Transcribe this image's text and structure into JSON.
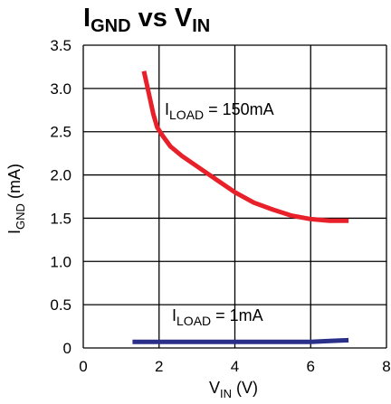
{
  "chart_data": {
    "type": "line",
    "title": {
      "main": "I",
      "main_sub": "GND",
      "mid": " vs V",
      "mid_sub": "IN"
    },
    "xlabel": {
      "main": "V",
      "sub": "IN",
      "rest": " (V)"
    },
    "ylabel": {
      "main": "I",
      "sub": "GND",
      "rest": " (mA)"
    },
    "xlim": [
      0,
      8
    ],
    "ylim": [
      0,
      3.5
    ],
    "x_ticks": [
      "0",
      "2",
      "4",
      "6",
      "8"
    ],
    "y_ticks": [
      "0",
      "0.5",
      "1.0",
      "1.5",
      "2.0",
      "2.5",
      "3.0",
      "3.5"
    ],
    "grid": true,
    "series": [
      {
        "annotation": {
          "main": "I",
          "sub": "LOAD",
          "rest": " = 150mA"
        },
        "color": "#e8202a",
        "points": [
          [
            1.6,
            3.2
          ],
          [
            1.75,
            2.9
          ],
          [
            1.85,
            2.7
          ],
          [
            1.95,
            2.55
          ],
          [
            2.1,
            2.45
          ],
          [
            2.3,
            2.33
          ],
          [
            2.6,
            2.22
          ],
          [
            3.0,
            2.1
          ],
          [
            3.5,
            1.95
          ],
          [
            4.0,
            1.8
          ],
          [
            4.5,
            1.68
          ],
          [
            5.0,
            1.6
          ],
          [
            5.5,
            1.53
          ],
          [
            6.0,
            1.49
          ],
          [
            6.5,
            1.47
          ],
          [
            7.0,
            1.47
          ]
        ]
      },
      {
        "annotation": {
          "main": "I",
          "sub": "LOAD",
          "rest": " = 1mA"
        },
        "color": "#2a2f8a",
        "points": [
          [
            1.3,
            0.07
          ],
          [
            2.0,
            0.07
          ],
          [
            3.0,
            0.07
          ],
          [
            4.0,
            0.07
          ],
          [
            5.0,
            0.07
          ],
          [
            6.0,
            0.07
          ],
          [
            6.5,
            0.08
          ],
          [
            7.0,
            0.09
          ]
        ]
      }
    ]
  }
}
